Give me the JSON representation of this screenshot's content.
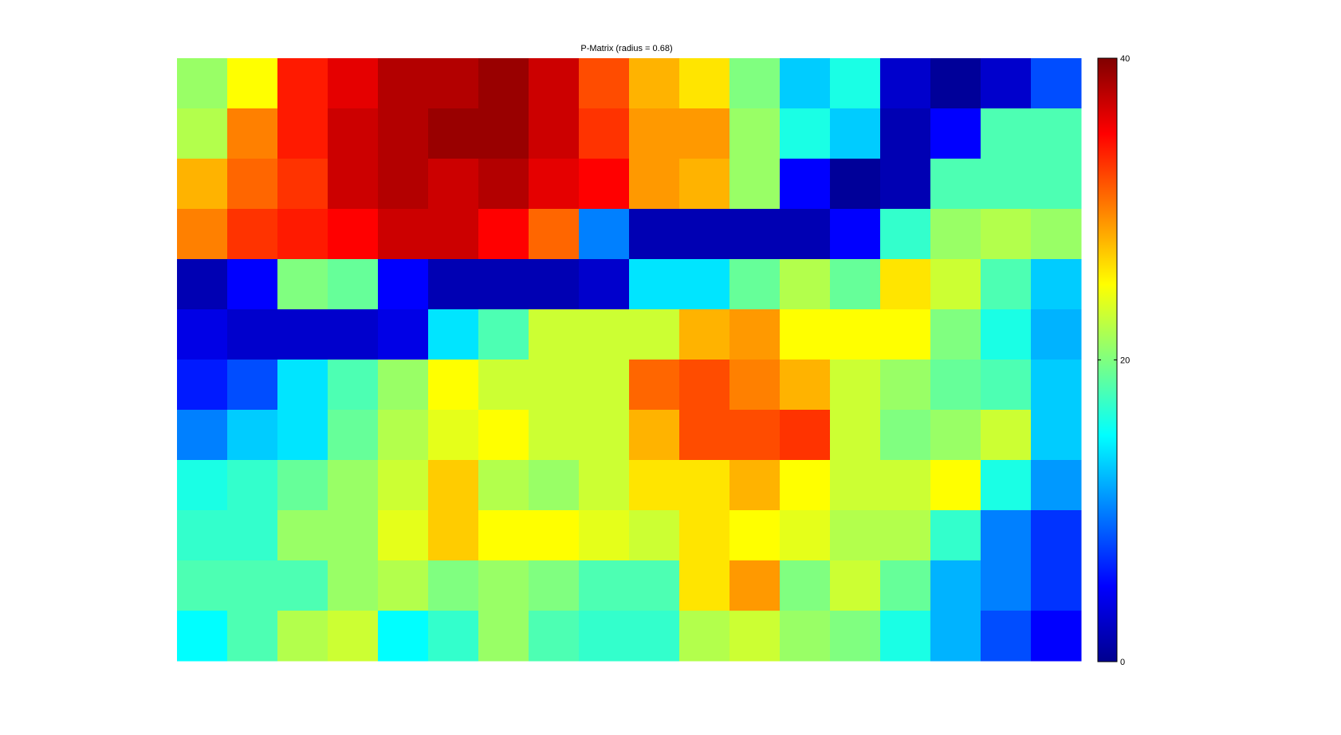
{
  "chart_data": {
    "type": "heatmap",
    "title": "P-Matrix (radius = 0.68)",
    "xlabel": "",
    "ylabel": "",
    "colormap": "jet",
    "clim": [
      0,
      40
    ],
    "colorbar": {
      "ticks": [
        0,
        20,
        40
      ],
      "tick_labels": [
        "0",
        "20",
        "40"
      ],
      "position": "right"
    },
    "grid": false,
    "rows": 12,
    "cols": 18,
    "values": [
      [
        21,
        25,
        34,
        36,
        38,
        38,
        39,
        37,
        32,
        28,
        26,
        20,
        13,
        16,
        3,
        1,
        3,
        8
      ],
      [
        22,
        30,
        34,
        37,
        38,
        39,
        39,
        37,
        33,
        29,
        29,
        21,
        16,
        13,
        2,
        5,
        18,
        18
      ],
      [
        28,
        31,
        33,
        37,
        38,
        37,
        38,
        36,
        35,
        29,
        28,
        21,
        5,
        1,
        2,
        18,
        18,
        18
      ],
      [
        30,
        33,
        34,
        35,
        37,
        37,
        35,
        31,
        10,
        2,
        2,
        2,
        2,
        5,
        17,
        21,
        22,
        21
      ],
      [
        2,
        5,
        20,
        19,
        5,
        2,
        2,
        2,
        3,
        14,
        14,
        19,
        22,
        19,
        26,
        23,
        18,
        13
      ],
      [
        4,
        3,
        3,
        3,
        4,
        14,
        18,
        23,
        23,
        23,
        28,
        29,
        25,
        25,
        25,
        20,
        16,
        12
      ],
      [
        6,
        8,
        14,
        18,
        21,
        25,
        23,
        23,
        23,
        31,
        32,
        30,
        28,
        23,
        21,
        19,
        18,
        13
      ],
      [
        10,
        13,
        14,
        19,
        22,
        24,
        25,
        23,
        23,
        28,
        32,
        32,
        33,
        23,
        20,
        21,
        23,
        13
      ],
      [
        16,
        17,
        19,
        21,
        23,
        27,
        22,
        21,
        23,
        26,
        26,
        28,
        25,
        23,
        23,
        25,
        16,
        11
      ],
      [
        17,
        17,
        21,
        21,
        24,
        27,
        25,
        25,
        24,
        23,
        26,
        25,
        24,
        22,
        22,
        17,
        10,
        7
      ],
      [
        18,
        18,
        18,
        21,
        22,
        20,
        21,
        20,
        18,
        18,
        26,
        29,
        20,
        23,
        19,
        12,
        10,
        7
      ],
      [
        15,
        18,
        22,
        23,
        15,
        17,
        21,
        18,
        17,
        17,
        22,
        23,
        21,
        20,
        16,
        12,
        8,
        5
      ]
    ]
  }
}
